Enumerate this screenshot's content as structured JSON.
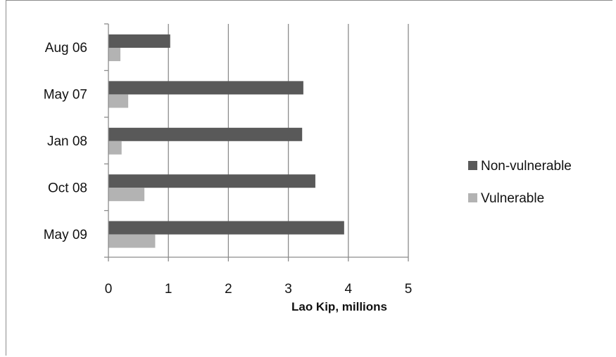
{
  "chart_data": {
    "type": "bar",
    "orientation": "horizontal",
    "categories": [
      "Aug 06",
      "May 07",
      "Jan 08",
      "Oct 08",
      "May 09"
    ],
    "series": [
      {
        "name": "Non-vulnerable",
        "color": "#595959",
        "values": [
          1.03,
          3.25,
          3.23,
          3.45,
          3.93
        ]
      },
      {
        "name": "Vulnerable",
        "color": "#b3b3b3",
        "values": [
          0.2,
          0.33,
          0.22,
          0.6,
          0.78
        ]
      }
    ],
    "xlabel": "Lao Kip, millions",
    "xlim": [
      0,
      5
    ],
    "xticks": [
      0,
      1,
      2,
      3,
      4,
      5
    ],
    "grid": "vertical",
    "legend": "right"
  }
}
